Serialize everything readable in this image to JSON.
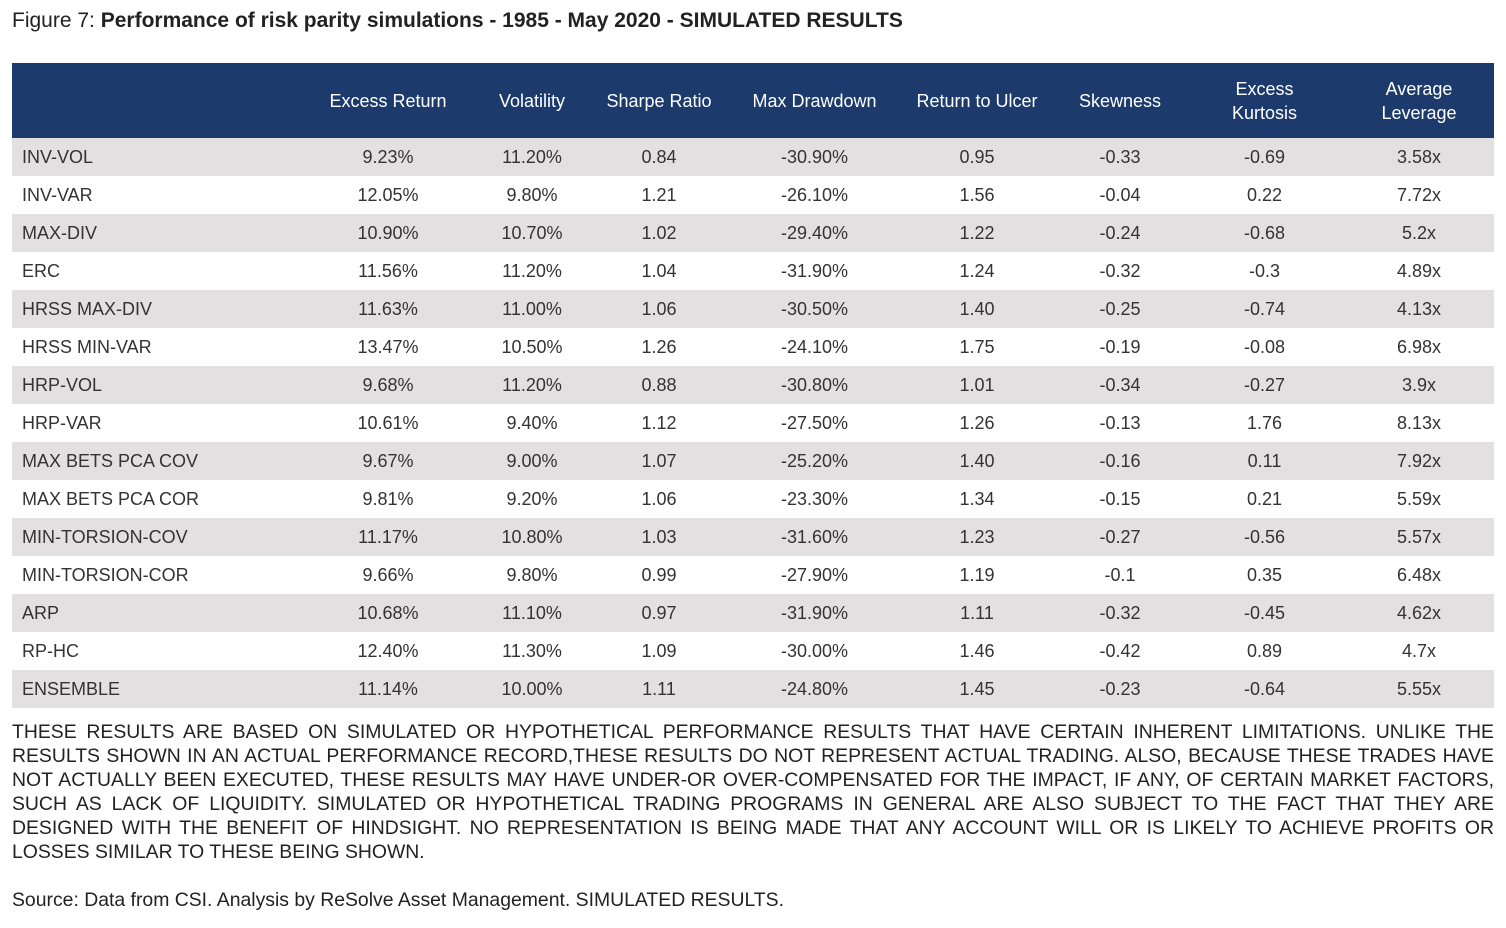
{
  "figure": {
    "label": "Figure 7: ",
    "title": "Performance of risk parity simulations - 1985 - May 2020 - SIMULATED RESULTS"
  },
  "table": {
    "headers": [
      "",
      "Excess Return",
      "Volatility",
      "Sharpe Ratio",
      "Max Drawdown",
      "Return to Ulcer",
      "Skewness",
      "Excess Kurtosis",
      "Average Leverage"
    ],
    "rows": [
      [
        "INV-VOL",
        "9.23%",
        "11.20%",
        "0.84",
        "-30.90%",
        "0.95",
        "-0.33",
        "-0.69",
        "3.58x"
      ],
      [
        "INV-VAR",
        "12.05%",
        "9.80%",
        "1.21",
        "-26.10%",
        "1.56",
        "-0.04",
        "0.22",
        "7.72x"
      ],
      [
        "MAX-DIV",
        "10.90%",
        "10.70%",
        "1.02",
        "-29.40%",
        "1.22",
        "-0.24",
        "-0.68",
        "5.2x"
      ],
      [
        "ERC",
        "11.56%",
        "11.20%",
        "1.04",
        "-31.90%",
        "1.24",
        "-0.32",
        "-0.3",
        "4.89x"
      ],
      [
        "HRSS MAX-DIV",
        "11.63%",
        "11.00%",
        "1.06",
        "-30.50%",
        "1.40",
        "-0.25",
        "-0.74",
        "4.13x"
      ],
      [
        "HRSS MIN-VAR",
        "13.47%",
        "10.50%",
        "1.26",
        "-24.10%",
        "1.75",
        "-0.19",
        "-0.08",
        "6.98x"
      ],
      [
        "HRP-VOL",
        "9.68%",
        "11.20%",
        "0.88",
        "-30.80%",
        "1.01",
        "-0.34",
        "-0.27",
        "3.9x"
      ],
      [
        "HRP-VAR",
        "10.61%",
        "9.40%",
        "1.12",
        "-27.50%",
        "1.26",
        "-0.13",
        "1.76",
        "8.13x"
      ],
      [
        "MAX BETS PCA COV",
        "9.67%",
        "9.00%",
        "1.07",
        "-25.20%",
        "1.40",
        "-0.16",
        "0.11",
        "7.92x"
      ],
      [
        "MAX BETS PCA COR",
        "9.81%",
        "9.20%",
        "1.06",
        "-23.30%",
        "1.34",
        "-0.15",
        "0.21",
        "5.59x"
      ],
      [
        "MIN-TORSION-COV",
        "11.17%",
        "10.80%",
        "1.03",
        "-31.60%",
        "1.23",
        "-0.27",
        "-0.56",
        "5.57x"
      ],
      [
        "MIN-TORSION-COR",
        "9.66%",
        "9.80%",
        "0.99",
        "-27.90%",
        "1.19",
        "-0.1",
        "0.35",
        "6.48x"
      ],
      [
        "ARP",
        "10.68%",
        "11.10%",
        "0.97",
        "-31.90%",
        "1.11",
        "-0.32",
        "-0.45",
        "4.62x"
      ],
      [
        "RP-HC",
        "12.40%",
        "11.30%",
        "1.09",
        "-30.00%",
        "1.46",
        "-0.42",
        "0.89",
        "4.7x"
      ],
      [
        "ENSEMBLE",
        "11.14%",
        "10.00%",
        "1.11",
        "-24.80%",
        "1.45",
        "-0.23",
        "-0.64",
        "5.55x"
      ]
    ]
  },
  "disclaimer": "THESE RESULTS ARE BASED ON SIMULATED OR HYPOTHETICAL PERFORMANCE RESULTS THAT HAVE CERTAIN INHERENT LIMITATIONS. UNLIKE THE RESULTS SHOWN IN AN ACTUAL PERFORMANCE RECORD,THESE RESULTS DO NOT REPRESENT ACTUAL TRADING. ALSO, BECAUSE THESE TRADES HAVE NOT ACTUALLY BEEN EXECUTED, THESE RESULTS MAY HAVE UNDER-OR OVER-COMPENSATED FOR THE IMPACT, IF ANY, OF CERTAIN MARKET FACTORS, SUCH AS LACK OF LIQUIDITY. SIMULATED OR HYPOTHETICAL TRADING PROGRAMS IN GENERAL ARE ALSO SUBJECT TO THE FACT THAT THEY ARE DESIGNED WITH THE BENEFIT OF HINDSIGHT. NO REPRESENTATION IS BEING MADE THAT ANY ACCOUNT WILL OR IS LIKELY TO ACHIEVE PROFITS OR LOSSES SIMILAR TO THESE BEING SHOWN.",
  "source": "Source: Data from CSI. Analysis by ReSolve Asset Management. SIMULATED RESULTS."
}
